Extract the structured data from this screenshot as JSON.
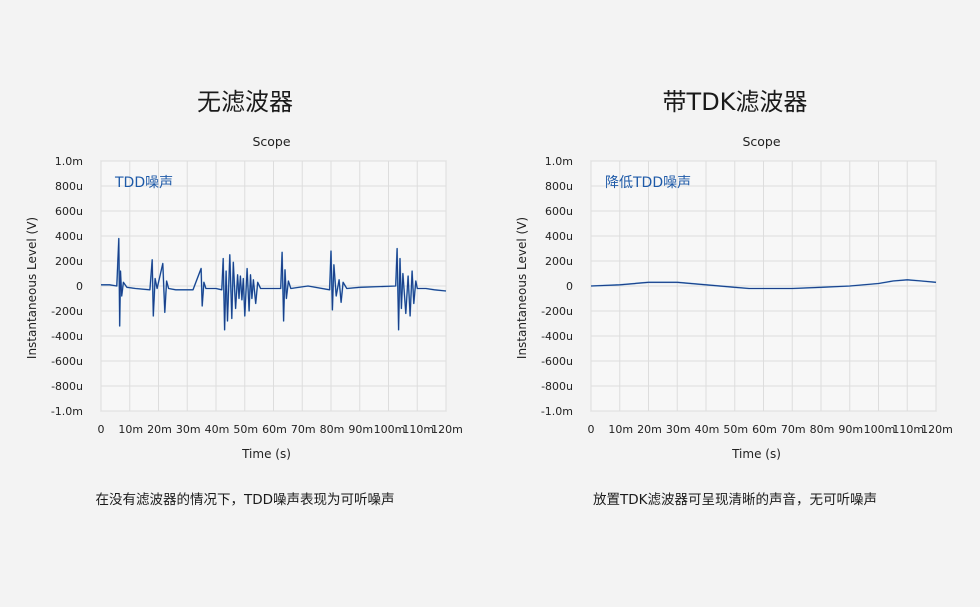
{
  "panels": [
    {
      "heading": "无滤波器",
      "caption": "在没有滤波器的情况下，TDD噪声表现为可听噪声"
    },
    {
      "heading": "带TDK滤波器",
      "caption": "放置TDK滤波器可呈现清晰的声音，无可听噪声"
    }
  ],
  "colors": {
    "signal_dark": "#1b3f8a",
    "signal_light": "#3b8fd0",
    "annotation": "#1e5aa8",
    "grid": "#dddddd",
    "plot_bg": "#f7f7f7"
  },
  "chart_data": [
    {
      "type": "line",
      "title": "Scope",
      "xlabel": "Time (s)",
      "ylabel": "Instantaneous Level (V)",
      "annotation": "TDD噪声",
      "xlim": [
        0,
        0.12
      ],
      "ylim": [
        -0.001,
        0.001
      ],
      "x_ticks": [
        0,
        0.01,
        0.02,
        0.03,
        0.04,
        0.05,
        0.06,
        0.07,
        0.08,
        0.09,
        0.1,
        0.11,
        0.12
      ],
      "x_tick_labels": [
        "0",
        "10m",
        "20m",
        "30m",
        "40m",
        "50m",
        "60m",
        "70m",
        "80m",
        "90m",
        "100m",
        "110m",
        "120m"
      ],
      "y_ticks": [
        0.001,
        0.0008,
        0.0006,
        0.0004,
        0.0002,
        0,
        -0.0002,
        -0.0004,
        -0.0006,
        -0.0008,
        -0.001
      ],
      "y_tick_labels": [
        "1.0m",
        "800u",
        "600u",
        "400u",
        "200u",
        "0",
        "-200u",
        "-400u",
        "-600u",
        "-800u",
        "-1.0m"
      ],
      "grid": true,
      "series": [
        {
          "x": [
            0,
            0.003,
            0.0055,
            0.0062,
            0.0065,
            0.0068,
            0.0072,
            0.0078,
            0.009,
            0.012,
            0.017,
            0.0178,
            0.0182,
            0.0188,
            0.0195,
            0.0215,
            0.0222,
            0.0228,
            0.0235,
            0.026,
            0.032,
            0.0348,
            0.0352,
            0.0358,
            0.0365,
            0.04,
            0.042,
            0.0425,
            0.043,
            0.0435,
            0.044,
            0.0448,
            0.0455,
            0.046,
            0.0468,
            0.0475,
            0.048,
            0.0485,
            0.049,
            0.0495,
            0.05,
            0.0508,
            0.0515,
            0.052,
            0.0525,
            0.053,
            0.0538,
            0.0545,
            0.0555,
            0.057,
            0.0625,
            0.063,
            0.0635,
            0.064,
            0.0645,
            0.0652,
            0.066,
            0.072,
            0.0795,
            0.08,
            0.0805,
            0.081,
            0.0818,
            0.0828,
            0.0835,
            0.0842,
            0.0855,
            0.09,
            0.1025,
            0.103,
            0.1035,
            0.104,
            0.1045,
            0.105,
            0.106,
            0.1068,
            0.1075,
            0.1082,
            0.1088,
            0.1095,
            0.11,
            0.113,
            0.116,
            0.12
          ],
          "y": [
            1e-05,
            1e-05,
            0.0,
            0.00038,
            -0.00032,
            0.00012,
            -8e-05,
            3e-05,
            -1e-05,
            -2e-05,
            -3e-05,
            0.00021,
            -0.00024,
            6e-05,
            -2e-05,
            0.00018,
            -0.00021,
            4e-05,
            -2e-05,
            -3e-05,
            -3e-05,
            0.00014,
            -0.00016,
            3e-05,
            -2e-05,
            -2e-05,
            -3e-05,
            0.00022,
            -0.00035,
            0.00012,
            -0.00028,
            0.00025,
            -0.00026,
            0.00019,
            -0.00018,
            9e-05,
            -0.0001,
            8e-05,
            -0.00011,
            6e-05,
            -0.00024,
            0.00014,
            -0.0002,
            9e-05,
            -0.0001,
            5e-05,
            -0.00014,
            3e-05,
            -2e-05,
            -2e-05,
            -2e-05,
            0.00027,
            -0.00028,
            0.00013,
            -0.0001,
            4e-05,
            -2e-05,
            0.0,
            -3e-05,
            0.00028,
            -0.00019,
            0.00017,
            -8e-05,
            5e-05,
            -0.00013,
            3e-05,
            -2e-05,
            -1e-05,
            0.0,
            0.0003,
            -0.00035,
            0.00022,
            -0.00018,
            0.0001,
            -0.00022,
            8e-05,
            -0.00024,
            0.00012,
            -0.00014,
            4e-05,
            -2e-05,
            -2e-05,
            -3e-05,
            -4e-05
          ]
        }
      ]
    },
    {
      "type": "line",
      "title": "Scope",
      "xlabel": "Time (s)",
      "ylabel": "Instantaneous Level (V)",
      "annotation": "降低TDD噪声",
      "xlim": [
        0,
        0.12
      ],
      "ylim": [
        -0.001,
        0.001
      ],
      "x_ticks": [
        0,
        0.01,
        0.02,
        0.03,
        0.04,
        0.05,
        0.06,
        0.07,
        0.08,
        0.09,
        0.1,
        0.11,
        0.12
      ],
      "x_tick_labels": [
        "0",
        "10m",
        "20m",
        "30m",
        "40m",
        "50m",
        "60m",
        "70m",
        "80m",
        "90m",
        "100m",
        "110m",
        "120m"
      ],
      "y_ticks": [
        0.001,
        0.0008,
        0.0006,
        0.0004,
        0.0002,
        0,
        -0.0002,
        -0.0004,
        -0.0006,
        -0.0008,
        -0.001
      ],
      "y_tick_labels": [
        "1.0m",
        "800u",
        "600u",
        "400u",
        "200u",
        "0",
        "-200u",
        "-400u",
        "-600u",
        "-800u",
        "-1.0m"
      ],
      "grid": true,
      "series": [
        {
          "x": [
            0,
            0.01,
            0.02,
            0.025,
            0.03,
            0.04,
            0.05,
            0.055,
            0.06,
            0.07,
            0.08,
            0.09,
            0.1,
            0.105,
            0.11,
            0.115,
            0.12
          ],
          "y": [
            0.0,
            1e-05,
            3e-05,
            3e-05,
            3e-05,
            1e-05,
            -1e-05,
            -2e-05,
            -2e-05,
            -2e-05,
            -1e-05,
            0.0,
            2e-05,
            4e-05,
            5e-05,
            4e-05,
            3e-05
          ]
        }
      ]
    }
  ]
}
